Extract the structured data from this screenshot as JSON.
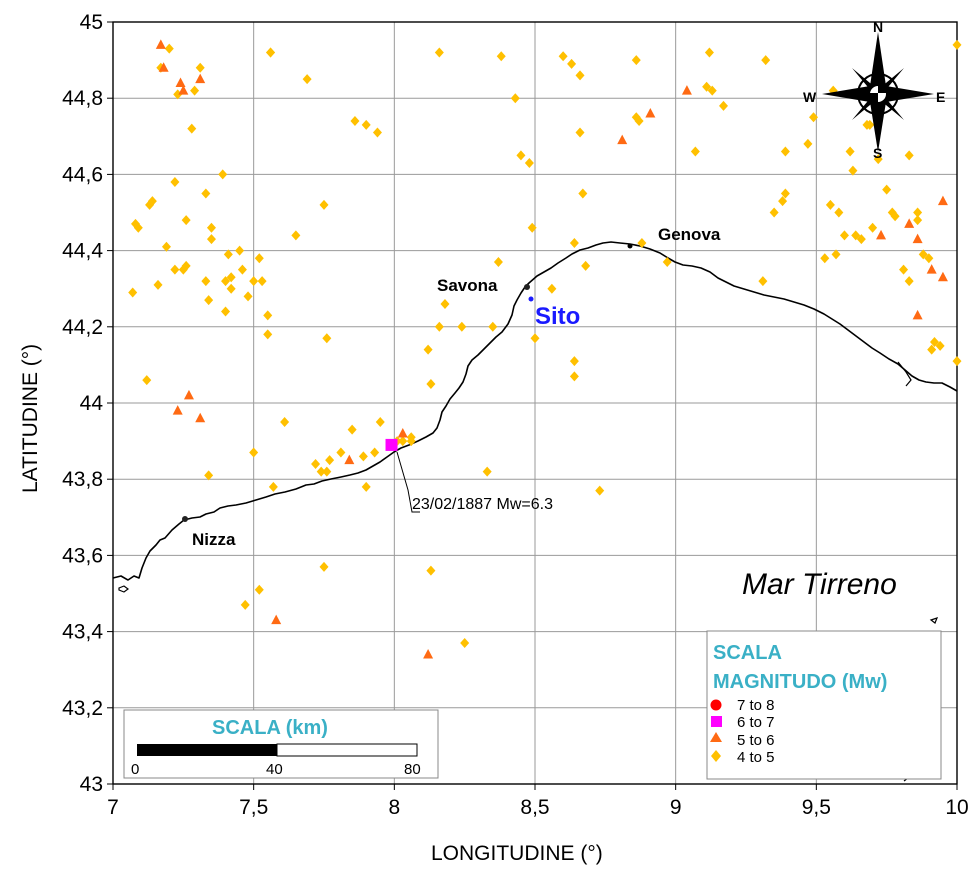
{
  "map": {
    "xlabel": "LONGITUDINE (°)",
    "ylabel": "LATITUDINE (°)",
    "x_ticks": [
      "7",
      "7,5",
      "8",
      "8,5",
      "9",
      "9,5",
      "10"
    ],
    "y_ticks": [
      "43",
      "43,2",
      "43,4",
      "43,6",
      "43,8",
      "44",
      "44,2",
      "44,4",
      "44,6",
      "44,8",
      "45"
    ],
    "xlim": [
      7,
      10
    ],
    "ylim": [
      43,
      45
    ],
    "grid": true,
    "sea_label": "Mar Tirreno",
    "site_label": "Sito",
    "cities": [
      {
        "name": "Genova",
        "lon": 8.93,
        "lat": 44.41
      },
      {
        "name": "Savona",
        "lon": 8.48,
        "lat": 44.31
      },
      {
        "name": "Nizza",
        "lon": 7.26,
        "lat": 43.7
      }
    ],
    "site": {
      "lon": 8.49,
      "lat": 44.27
    },
    "annotation": {
      "text": "23/02/1887 Mw=6.3",
      "lon": 7.99,
      "lat": 43.89
    }
  },
  "compass": {
    "north": "N",
    "south": "S",
    "east": "E",
    "west": "W"
  },
  "scale_bar": {
    "title": "SCALA (km)",
    "labels": [
      "0",
      "40",
      "80"
    ]
  },
  "legend": {
    "title_line1": "SCALA",
    "title_line2": "MAGNITUDO (Mw)",
    "items": [
      {
        "label": "7  to  8",
        "shape": "circle",
        "color": "#ff0000"
      },
      {
        "label": "6  to  7",
        "shape": "square",
        "color": "#ff00ff"
      },
      {
        "label": "5  to  6",
        "shape": "triangle",
        "color": "#ff6a13"
      },
      {
        "label": "4  to  5",
        "shape": "diamond",
        "color": "#ffc000"
      }
    ]
  },
  "colors": {
    "class_7_8": "#ff0000",
    "class_6_7": "#ff00ff",
    "class_5_6": "#ff6a13",
    "class_4_5": "#ffc000",
    "site": "#1a1aff",
    "legend_title": "#3ab0c6"
  },
  "events": {
    "mw_6_7": [
      [
        7.99,
        43.89
      ]
    ],
    "mw_5_6": [
      [
        7.17,
        44.94
      ],
      [
        7.18,
        44.88
      ],
      [
        7.24,
        44.84
      ],
      [
        7.25,
        44.82
      ],
      [
        7.31,
        44.85
      ],
      [
        7.23,
        43.98
      ],
      [
        7.27,
        44.02
      ],
      [
        7.31,
        43.96
      ],
      [
        7.58,
        43.43
      ],
      [
        7.84,
        43.85
      ],
      [
        8.03,
        43.92
      ],
      [
        8.12,
        43.34
      ],
      [
        8.81,
        44.69
      ],
      [
        8.91,
        44.76
      ],
      [
        9.04,
        44.82
      ],
      [
        9.73,
        44.44
      ],
      [
        9.83,
        44.47
      ],
      [
        9.86,
        44.43
      ],
      [
        9.86,
        44.23
      ],
      [
        9.91,
        44.35
      ],
      [
        9.95,
        44.33
      ],
      [
        9.95,
        44.53
      ]
    ],
    "mw_4_5": [
      [
        7.07,
        44.29
      ],
      [
        7.08,
        44.47
      ],
      [
        7.09,
        44.46
      ],
      [
        7.12,
        44.06
      ],
      [
        7.13,
        44.52
      ],
      [
        7.14,
        44.53
      ],
      [
        7.16,
        44.31
      ],
      [
        7.17,
        44.88
      ],
      [
        7.19,
        44.41
      ],
      [
        7.2,
        44.93
      ],
      [
        7.22,
        44.35
      ],
      [
        7.22,
        44.58
      ],
      [
        7.23,
        44.81
      ],
      [
        7.25,
        44.35
      ],
      [
        7.26,
        44.48
      ],
      [
        7.26,
        44.36
      ],
      [
        7.28,
        44.72
      ],
      [
        7.29,
        44.82
      ],
      [
        7.31,
        44.88
      ],
      [
        7.33,
        44.32
      ],
      [
        7.33,
        44.55
      ],
      [
        7.34,
        44.27
      ],
      [
        7.35,
        44.46
      ],
      [
        7.35,
        44.43
      ],
      [
        7.39,
        44.6
      ],
      [
        7.4,
        44.32
      ],
      [
        7.4,
        44.24
      ],
      [
        7.41,
        44.39
      ],
      [
        7.42,
        44.33
      ],
      [
        7.42,
        44.3
      ],
      [
        7.45,
        44.4
      ],
      [
        7.46,
        44.35
      ],
      [
        7.48,
        44.28
      ],
      [
        7.5,
        44.32
      ],
      [
        7.52,
        44.38
      ],
      [
        7.53,
        44.32
      ],
      [
        7.55,
        44.23
      ],
      [
        7.55,
        44.18
      ],
      [
        7.56,
        44.92
      ],
      [
        7.56,
        44.92
      ],
      [
        7.34,
        43.81
      ],
      [
        7.47,
        43.47
      ],
      [
        7.5,
        43.87
      ],
      [
        7.52,
        43.51
      ],
      [
        7.57,
        43.78
      ],
      [
        7.61,
        43.95
      ],
      [
        7.65,
        44.44
      ],
      [
        7.69,
        44.85
      ],
      [
        7.72,
        43.84
      ],
      [
        7.74,
        43.82
      ],
      [
        7.75,
        44.52
      ],
      [
        7.75,
        43.57
      ],
      [
        7.76,
        43.82
      ],
      [
        7.76,
        44.17
      ],
      [
        7.77,
        43.85
      ],
      [
        7.81,
        43.87
      ],
      [
        7.85,
        43.93
      ],
      [
        7.86,
        44.74
      ],
      [
        7.89,
        43.86
      ],
      [
        7.9,
        44.73
      ],
      [
        7.9,
        43.78
      ],
      [
        7.93,
        43.87
      ],
      [
        7.94,
        44.71
      ],
      [
        7.95,
        43.95
      ],
      [
        8.01,
        43.9
      ],
      [
        8.03,
        43.9
      ],
      [
        8.06,
        43.91
      ],
      [
        8.06,
        43.9
      ],
      [
        8.12,
        44.14
      ],
      [
        8.13,
        44.05
      ],
      [
        8.13,
        43.56
      ],
      [
        8.16,
        44.92
      ],
      [
        8.16,
        44.2
      ],
      [
        8.18,
        44.26
      ],
      [
        8.24,
        44.2
      ],
      [
        8.25,
        43.37
      ],
      [
        8.33,
        43.82
      ],
      [
        8.35,
        44.2
      ],
      [
        8.37,
        44.37
      ],
      [
        8.38,
        44.91
      ],
      [
        8.43,
        44.8
      ],
      [
        8.45,
        44.65
      ],
      [
        8.48,
        44.63
      ],
      [
        8.49,
        44.46
      ],
      [
        8.5,
        44.17
      ],
      [
        8.56,
        44.3
      ],
      [
        8.6,
        44.91
      ],
      [
        8.63,
        44.89
      ],
      [
        8.64,
        44.42
      ],
      [
        8.64,
        44.11
      ],
      [
        8.64,
        44.07
      ],
      [
        8.66,
        44.71
      ],
      [
        8.66,
        44.86
      ],
      [
        8.67,
        44.55
      ],
      [
        8.68,
        44.36
      ],
      [
        8.73,
        43.77
      ],
      [
        8.86,
        44.9
      ],
      [
        8.86,
        44.75
      ],
      [
        8.87,
        44.74
      ],
      [
        8.88,
        44.42
      ],
      [
        8.97,
        44.37
      ],
      [
        9.07,
        44.66
      ],
      [
        9.11,
        44.83
      ],
      [
        9.12,
        44.92
      ],
      [
        9.13,
        44.82
      ],
      [
        9.17,
        44.78
      ],
      [
        9.31,
        44.32
      ],
      [
        9.32,
        44.9
      ],
      [
        9.35,
        44.5
      ],
      [
        9.38,
        44.53
      ],
      [
        9.39,
        44.55
      ],
      [
        9.39,
        44.66
      ],
      [
        9.47,
        44.68
      ],
      [
        9.49,
        44.75
      ],
      [
        9.53,
        44.38
      ],
      [
        9.55,
        44.52
      ],
      [
        9.56,
        44.82
      ],
      [
        9.57,
        44.39
      ],
      [
        9.58,
        44.5
      ],
      [
        9.6,
        44.44
      ],
      [
        9.62,
        44.66
      ],
      [
        9.63,
        44.61
      ],
      [
        9.64,
        44.44
      ],
      [
        9.66,
        44.43
      ],
      [
        9.68,
        44.73
      ],
      [
        9.69,
        44.73
      ],
      [
        9.7,
        44.46
      ],
      [
        9.72,
        44.64
      ],
      [
        9.75,
        44.56
      ],
      [
        9.77,
        44.5
      ],
      [
        9.78,
        44.49
      ],
      [
        9.81,
        44.35
      ],
      [
        9.83,
        44.32
      ],
      [
        9.83,
        44.65
      ],
      [
        9.86,
        44.48
      ],
      [
        9.86,
        44.5
      ],
      [
        9.88,
        44.39
      ],
      [
        9.9,
        44.38
      ],
      [
        9.91,
        44.14
      ],
      [
        9.92,
        44.16
      ],
      [
        9.94,
        44.15
      ],
      [
        10.0,
        44.11
      ],
      [
        10.0,
        44.94
      ]
    ]
  }
}
